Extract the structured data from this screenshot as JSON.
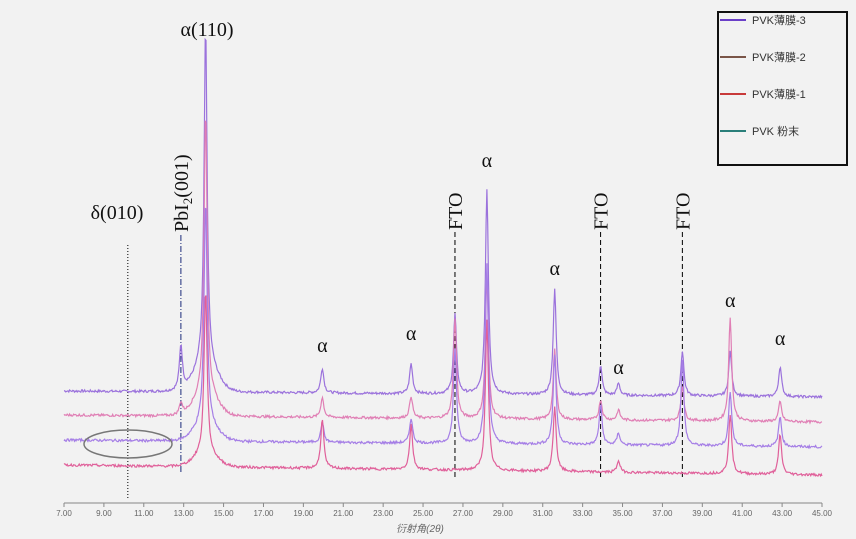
{
  "chart_data": {
    "type": "line",
    "title": "",
    "xlabel": "衍射角(2θ)",
    "ylabel": "",
    "xlim": [
      7,
      45
    ],
    "xticks": [
      "7.00",
      "9.00",
      "11.00",
      "13.00",
      "15.00",
      "17.00",
      "19.00",
      "21.00",
      "23.00",
      "25.00",
      "27.00",
      "29.00",
      "31.00",
      "33.00",
      "35.00",
      "37.00",
      "39.00",
      "41.00",
      "43.00",
      "45.00"
    ],
    "legend_position": "top-right",
    "legend": [
      {
        "label": "PVK薄膜-3",
        "color": "#6a3fc8"
      },
      {
        "label": "PVK薄膜-2",
        "color": "#7a5548"
      },
      {
        "label": "PVK薄膜-1",
        "color": "#c83a3a"
      },
      {
        "label": "PVK 粉末",
        "color": "#2a7f7a"
      }
    ],
    "series": [
      {
        "name": "PVK薄膜-3",
        "color": "#9b72dc",
        "offset": 300,
        "baseline_drift": -6,
        "peaks": [
          [
            12.86,
            45
          ],
          [
            14.1,
            340
          ],
          [
            19.95,
            25
          ],
          [
            24.4,
            30
          ],
          [
            26.6,
            80
          ],
          [
            28.2,
            205
          ],
          [
            31.6,
            105
          ],
          [
            33.9,
            30
          ],
          [
            34.8,
            12
          ],
          [
            38.0,
            45
          ],
          [
            40.4,
            45
          ],
          [
            42.9,
            30
          ]
        ]
      },
      {
        "name": "PVK薄膜-2",
        "color": "#e07fb5",
        "offset": 276,
        "baseline_drift": -7,
        "peaks": [
          [
            12.86,
            12
          ],
          [
            14.1,
            285
          ],
          [
            19.95,
            20
          ],
          [
            24.4,
            22
          ],
          [
            26.6,
            100
          ],
          [
            28.2,
            143
          ],
          [
            31.6,
            70
          ],
          [
            33.9,
            20
          ],
          [
            34.8,
            10
          ],
          [
            38.0,
            35
          ],
          [
            40.4,
            104
          ],
          [
            42.9,
            20
          ]
        ]
      },
      {
        "name": "PVK薄膜-1",
        "color": "#a57ee6",
        "offset": 251,
        "baseline_drift": -7,
        "peaks": [
          [
            14.1,
            225
          ],
          [
            19.95,
            20
          ],
          [
            24.4,
            25
          ],
          [
            26.6,
            95
          ],
          [
            28.2,
            180
          ],
          [
            31.6,
            90
          ],
          [
            33.9,
            40
          ],
          [
            34.8,
            12
          ],
          [
            38.0,
            85
          ],
          [
            40.4,
            55
          ],
          [
            42.9,
            30
          ]
        ]
      },
      {
        "name": "PVK 粉末",
        "color": "#e0609a",
        "offset": 226,
        "baseline_drift": -10,
        "peaks": [
          [
            14.1,
            165
          ],
          [
            19.95,
            50
          ],
          [
            24.4,
            45
          ],
          [
            26.6,
            0
          ],
          [
            28.2,
            150
          ],
          [
            31.6,
            65
          ],
          [
            34.8,
            12
          ],
          [
            40.4,
            60
          ],
          [
            42.9,
            40
          ]
        ]
      }
    ],
    "annotations": {
      "a110": "α(110)",
      "pbi2_main": "PbI",
      "pbi2_sub": "2",
      "pbi2_tail": "(001)",
      "delta": "δ(010)",
      "fto": "FTO",
      "alpha": "α",
      "fto_positions": [
        26.6,
        33.9,
        38.0
      ],
      "pbi2_position": 12.86,
      "delta_position": 10.2,
      "alpha_positions": [
        19.95,
        24.4,
        28.2,
        31.6,
        34.8,
        40.4,
        42.9
      ]
    }
  }
}
